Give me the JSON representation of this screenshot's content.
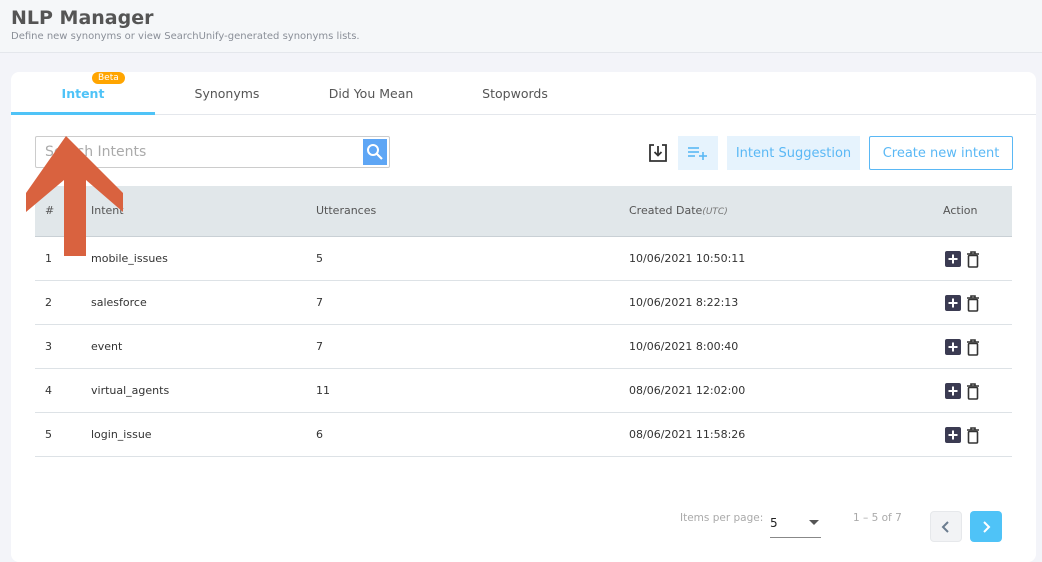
{
  "header": {
    "title": "NLP Manager",
    "subtitle": "Define new synonyms or view SearchUnify-generated synonyms lists."
  },
  "tabs": [
    {
      "label": "Intent",
      "badge": "Beta",
      "active": true
    },
    {
      "label": "Synonyms"
    },
    {
      "label": "Did You Mean"
    },
    {
      "label": "Stopwords"
    }
  ],
  "search": {
    "placeholder": "Search Intents",
    "icon": "search-icon"
  },
  "toolbar": {
    "download_icon": "download-icon",
    "add_list_icon": "playlist-add-icon",
    "suggestion_label": "Intent Suggestion",
    "create_label": "Create new intent"
  },
  "table": {
    "headers": {
      "num": "#",
      "intent": "Intent",
      "utterances": "Utterances",
      "created": "Created Date",
      "created_suffix": "(UTC)",
      "action": "Action"
    },
    "rows": [
      {
        "num": "1",
        "intent": "mobile_issues",
        "utterances": "5",
        "created": "10/06/2021 10:50:11"
      },
      {
        "num": "2",
        "intent": "salesforce",
        "utterances": "7",
        "created": "10/06/2021 8:22:13"
      },
      {
        "num": "3",
        "intent": "event",
        "utterances": "7",
        "created": "10/06/2021 8:00:40"
      },
      {
        "num": "4",
        "intent": "virtual_agents",
        "utterances": "11",
        "created": "08/06/2021 12:02:00"
      },
      {
        "num": "5",
        "intent": "login_issue",
        "utterances": "6",
        "created": "08/06/2021 11:58:26"
      }
    ]
  },
  "pagination": {
    "items_per_page_label": "Items per page:",
    "items_per_page": "5",
    "range": "1 – 5 of 7"
  },
  "colors": {
    "accent": "#4fc3f7",
    "badge": "#ffa500",
    "annotation_arrow": "#d9623f"
  }
}
